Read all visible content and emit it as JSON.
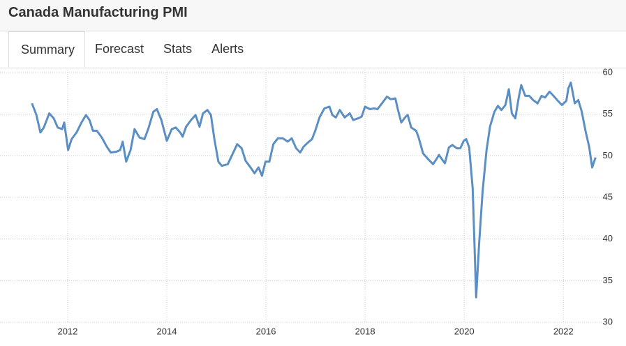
{
  "header": {
    "title": "Canada Manufacturing PMI"
  },
  "tabs": [
    "Summary",
    "Forecast",
    "Stats",
    "Alerts"
  ],
  "chart_data": {
    "type": "line",
    "x": [
      2011.28,
      2011.37,
      2011.45,
      2011.52,
      2011.63,
      2011.72,
      2011.8,
      2011.89,
      2011.93,
      2012.01,
      2012.08,
      2012.18,
      2012.28,
      2012.37,
      2012.44,
      2012.51,
      2012.59,
      2012.69,
      2012.79,
      2012.87,
      2012.99,
      2013.06,
      2013.11,
      2013.18,
      2013.27,
      2013.35,
      2013.45,
      2013.55,
      2013.63,
      2013.73,
      2013.8,
      2013.89,
      2014.0,
      2014.1,
      2014.18,
      2014.27,
      2014.32,
      2014.39,
      2014.49,
      2014.58,
      2014.66,
      2014.73,
      2014.82,
      2014.89,
      2014.96,
      2015.04,
      2015.11,
      2015.23,
      2015.31,
      2015.42,
      2015.51,
      2015.59,
      2015.7,
      2015.77,
      2015.85,
      2015.92,
      2015.99,
      2016.07,
      2016.15,
      2016.24,
      2016.34,
      2016.44,
      2016.52,
      2016.61,
      2016.69,
      2016.76,
      2016.85,
      2016.93,
      2017.0,
      2017.08,
      2017.18,
      2017.28,
      2017.34,
      2017.41,
      2017.49,
      2017.59,
      2017.69,
      2017.76,
      2017.86,
      2017.93,
      2018.0,
      2018.1,
      2018.18,
      2018.25,
      2018.34,
      2018.44,
      2018.52,
      2018.61,
      2018.66,
      2018.73,
      2018.82,
      2018.86,
      2018.93,
      2019.03,
      2019.08,
      2019.17,
      2019.27,
      2019.37,
      2019.44,
      2019.49,
      2019.55,
      2019.61,
      2019.69,
      2019.76,
      2019.85,
      2019.92,
      2019.99,
      2020.04,
      2020.1,
      2020.17,
      2020.24,
      2020.3,
      2020.37,
      2020.45,
      2020.52,
      2020.61,
      2020.68,
      2020.75,
      2020.83,
      2020.9,
      2020.96,
      2021.03,
      2021.1,
      2021.15,
      2021.23,
      2021.31,
      2021.39,
      2021.48,
      2021.56,
      2021.63,
      2021.72,
      2021.8,
      2021.89,
      2021.97,
      2022.06,
      2022.1,
      2022.15,
      2022.23,
      2022.3,
      2022.37,
      2022.45,
      2022.52,
      2022.58,
      2022.65
    ],
    "series": [
      {
        "name": "Canada Manufacturing PMI",
        "color": "#5b8fc4",
        "values": [
          56.3,
          54.9,
          52.8,
          53.4,
          55.1,
          54.5,
          53.4,
          53.2,
          54.0,
          50.7,
          52.0,
          52.8,
          54.0,
          54.9,
          54.3,
          53.0,
          53.0,
          52.2,
          51.1,
          50.4,
          50.5,
          50.7,
          51.7,
          49.3,
          50.7,
          53.2,
          52.2,
          52.0,
          53.3,
          55.3,
          55.6,
          54.3,
          51.8,
          53.2,
          53.4,
          52.8,
          52.3,
          53.5,
          54.3,
          54.9,
          53.5,
          55.1,
          55.5,
          54.9,
          52.0,
          49.3,
          48.8,
          49.0,
          50.0,
          51.4,
          50.9,
          49.4,
          48.5,
          47.9,
          48.6,
          47.6,
          49.3,
          49.3,
          51.4,
          52.1,
          52.1,
          51.7,
          52.1,
          50.9,
          50.4,
          51.1,
          51.6,
          52.0,
          53.1,
          54.6,
          55.7,
          55.9,
          54.9,
          54.6,
          55.5,
          54.6,
          55.1,
          54.3,
          54.5,
          54.7,
          55.9,
          55.6,
          55.7,
          55.6,
          56.3,
          57.1,
          56.8,
          56.9,
          55.6,
          54.0,
          54.7,
          54.9,
          53.4,
          53.0,
          52.2,
          50.3,
          49.6,
          49.0,
          49.6,
          50.1,
          49.6,
          49.1,
          51.0,
          51.3,
          50.9,
          50.9,
          51.8,
          52.0,
          51.0,
          46.1,
          33.0,
          39.4,
          45.7,
          50.7,
          53.5,
          55.3,
          56.0,
          55.5,
          56.1,
          58.0,
          55.1,
          54.5,
          57.0,
          58.5,
          57.2,
          57.2,
          56.7,
          56.3,
          57.2,
          57.0,
          57.7,
          57.2,
          56.6,
          56.1,
          56.6,
          58.1,
          58.8,
          56.3,
          56.7,
          55.3,
          52.9,
          51.1,
          48.6,
          49.8
        ]
      }
    ],
    "xlim": [
      2011.1,
      2022.7
    ],
    "xticks": [
      2012,
      2014,
      2016,
      2018,
      2020,
      2022
    ],
    "ylim": [
      30,
      60
    ],
    "yticks": [
      30,
      35,
      40,
      45,
      50,
      55,
      60
    ],
    "grid": true
  }
}
